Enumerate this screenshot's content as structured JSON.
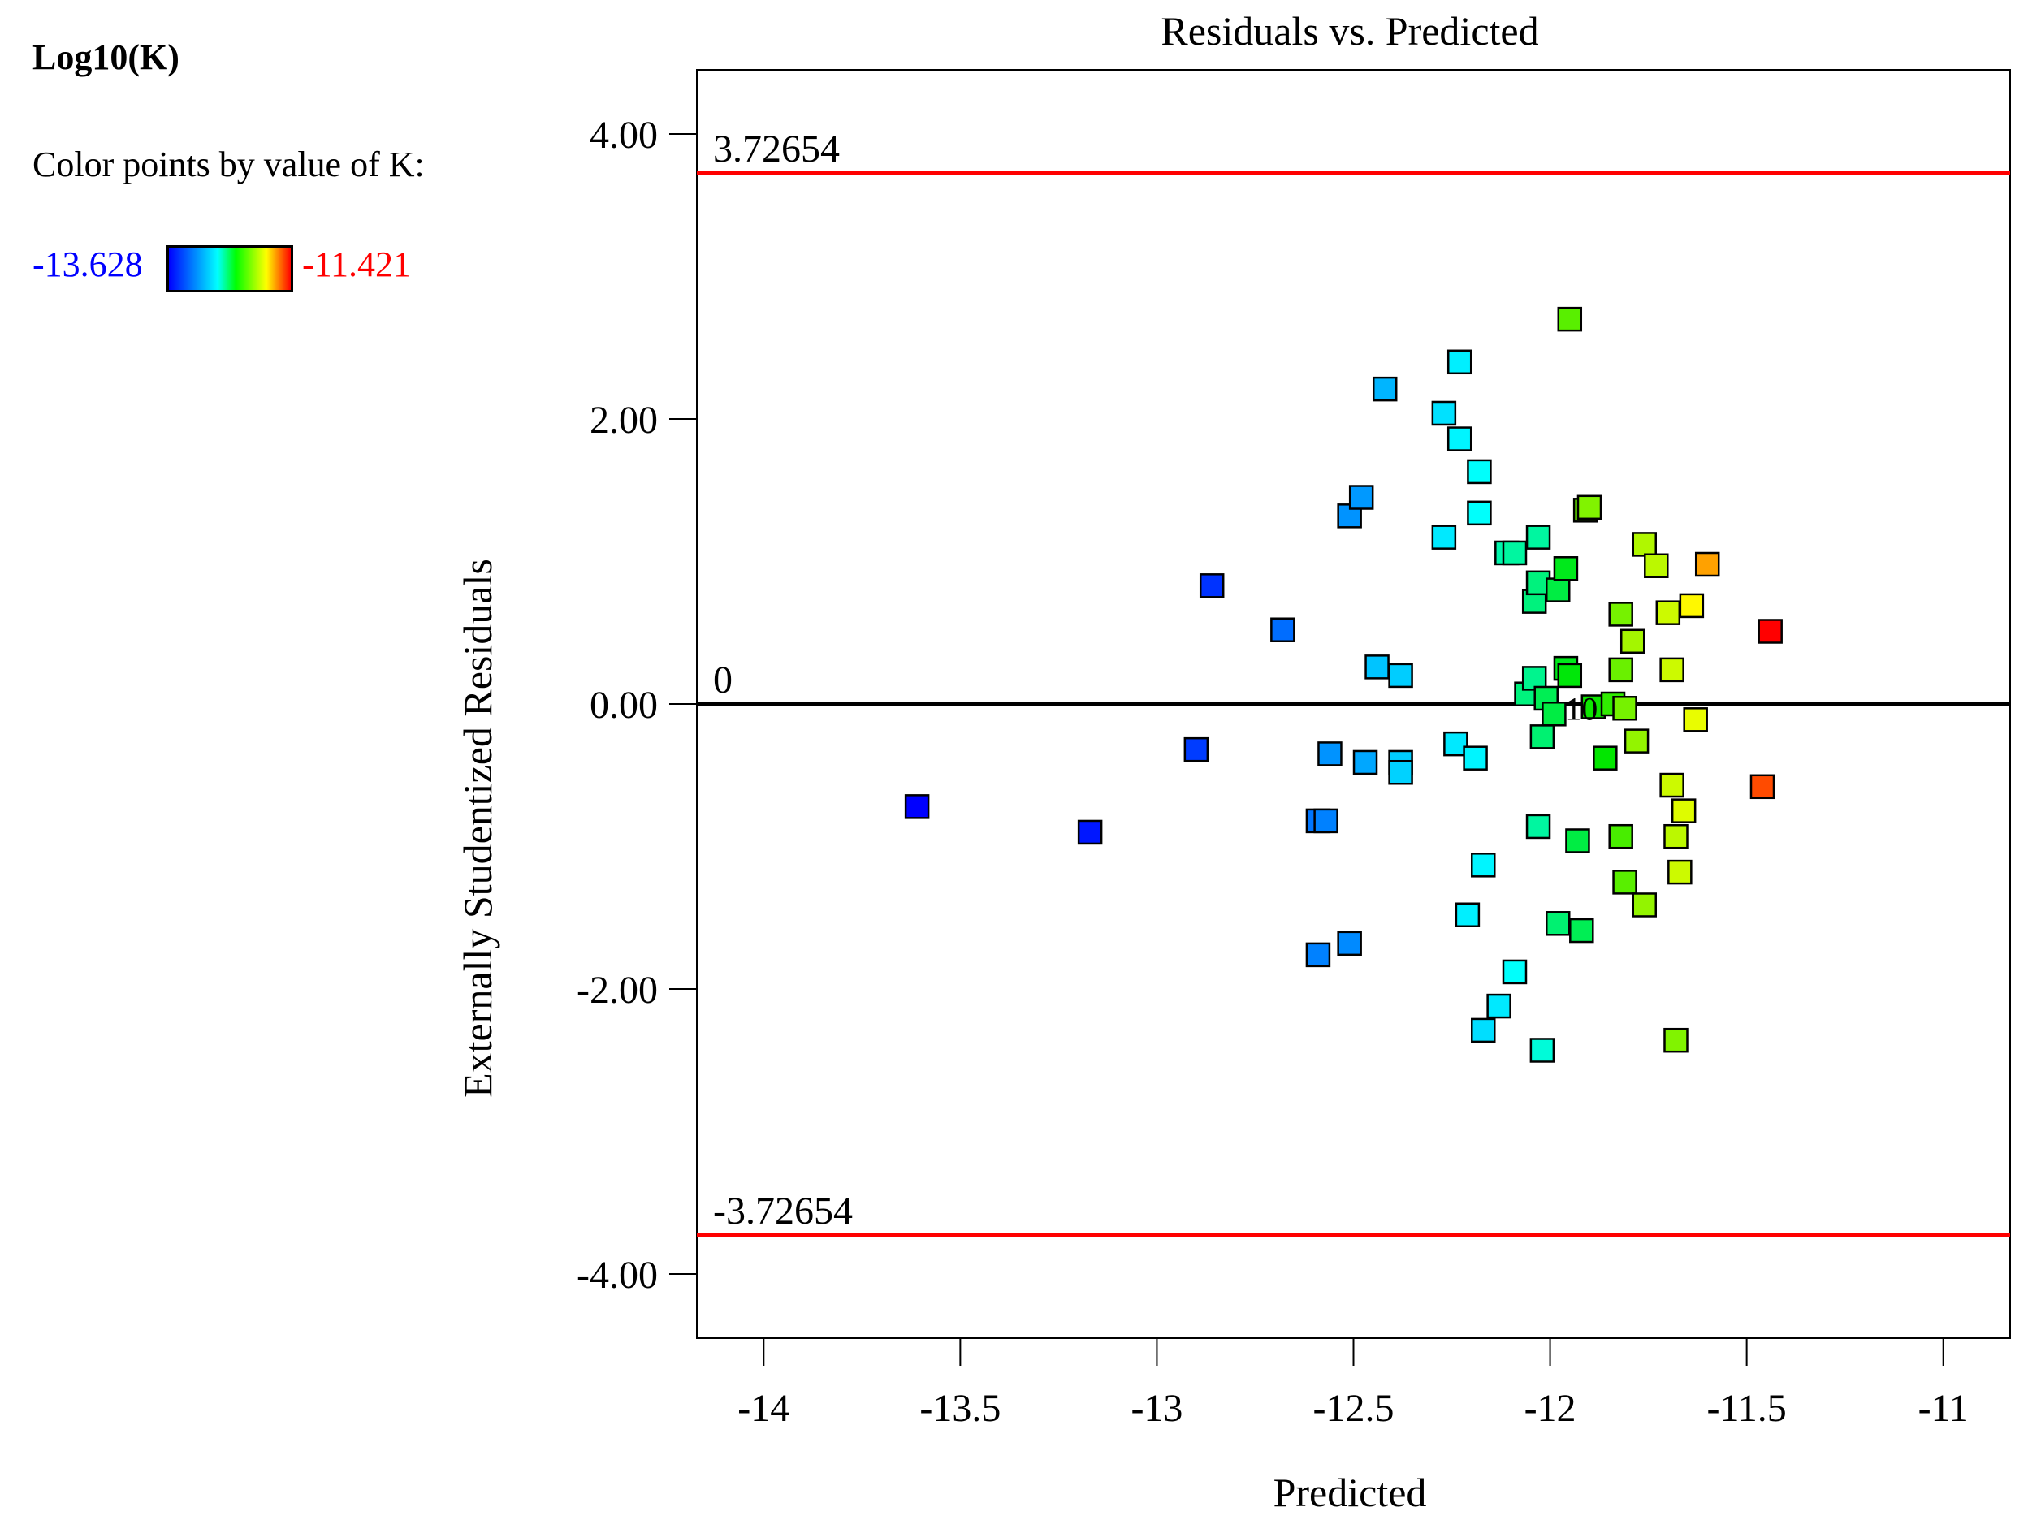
{
  "legend": {
    "title": "Log10(K)",
    "caption": "Color points by value of K:",
    "min_label": "-13.628",
    "max_label": "-11.421",
    "min_color": "#0000ff",
    "max_color": "#ff0000"
  },
  "chart_data": {
    "type": "scatter",
    "title": "Residuals vs. Predicted",
    "xlabel": "Predicted",
    "ylabel": "Externally Studentized Residuals",
    "xlim": [
      -14.17,
      -10.83
    ],
    "ylim": [
      -4.45,
      4.45
    ],
    "xticks": [
      -14,
      -13.5,
      -13,
      -12.5,
      -12,
      -11.5,
      -11
    ],
    "xtick_labels": [
      "-14",
      "-13.5",
      "-13",
      "-12.5",
      "-12",
      "-11.5",
      "-11"
    ],
    "yticks": [
      4,
      2,
      0,
      -2,
      -4
    ],
    "ytick_labels": [
      "4.00",
      "2.00",
      "0.00",
      "-2.00",
      "-4.00"
    ],
    "reference_lines": [
      {
        "y": 3.72654,
        "label": "3.72654",
        "color": "#ff0000"
      },
      {
        "y": 0,
        "label": "0",
        "color": "#000000"
      },
      {
        "y": -3.72654,
        "label": "-3.72654",
        "color": "#ff0000"
      }
    ],
    "annotations": [
      {
        "x": -11.92,
        "y": -0.02,
        "text": "10"
      }
    ],
    "color_range": [
      -13.628,
      -11.421
    ],
    "points": [
      {
        "x": -13.61,
        "y": -0.72,
        "k": -13.628
      },
      {
        "x": -13.17,
        "y": -0.9,
        "k": -13.55
      },
      {
        "x": -12.86,
        "y": 0.83,
        "k": -13.45
      },
      {
        "x": -12.9,
        "y": -0.32,
        "k": -13.42
      },
      {
        "x": -12.68,
        "y": 0.52,
        "k": -13.25
      },
      {
        "x": -12.59,
        "y": -0.82,
        "k": -13.22
      },
      {
        "x": -12.57,
        "y": -0.82,
        "k": -13.18
      },
      {
        "x": -12.59,
        "y": -1.76,
        "k": -13.18
      },
      {
        "x": -12.51,
        "y": -1.68,
        "k": -13.15
      },
      {
        "x": -12.56,
        "y": -0.35,
        "k": -13.12
      },
      {
        "x": -12.51,
        "y": 1.32,
        "k": -13.12
      },
      {
        "x": -12.48,
        "y": 1.45,
        "k": -13.1
      },
      {
        "x": -12.47,
        "y": -0.41,
        "k": -13.05
      },
      {
        "x": -12.42,
        "y": 2.21,
        "k": -13.0
      },
      {
        "x": -12.44,
        "y": 0.26,
        "k": -12.95
      },
      {
        "x": -12.38,
        "y": 0.2,
        "k": -12.92
      },
      {
        "x": -12.38,
        "y": -0.41,
        "k": -12.92
      },
      {
        "x": -12.38,
        "y": -0.48,
        "k": -12.9
      },
      {
        "x": -12.27,
        "y": 2.04,
        "k": -12.85
      },
      {
        "x": -12.27,
        "y": 1.17,
        "k": -12.82
      },
      {
        "x": -12.23,
        "y": 2.4,
        "k": -12.8
      },
      {
        "x": -12.23,
        "y": 1.86,
        "k": -12.78
      },
      {
        "x": -12.24,
        "y": -0.28,
        "k": -12.82
      },
      {
        "x": -12.18,
        "y": 1.63,
        "k": -12.74
      },
      {
        "x": -12.18,
        "y": 1.34,
        "k": -12.74
      },
      {
        "x": -12.19,
        "y": -0.38,
        "k": -12.78
      },
      {
        "x": -12.21,
        "y": -1.48,
        "k": -12.8
      },
      {
        "x": -12.17,
        "y": -1.13,
        "k": -12.78
      },
      {
        "x": -12.17,
        "y": -2.29,
        "k": -12.86
      },
      {
        "x": -12.13,
        "y": -2.12,
        "k": -12.82
      },
      {
        "x": -12.09,
        "y": -1.88,
        "k": -12.74
      },
      {
        "x": -12.11,
        "y": 1.06,
        "k": -12.6
      },
      {
        "x": -12.09,
        "y": 1.06,
        "k": -12.58
      },
      {
        "x": -12.06,
        "y": 0.07,
        "k": -12.52
      },
      {
        "x": -12.04,
        "y": 0.18,
        "k": -12.55
      },
      {
        "x": -12.04,
        "y": 0.72,
        "k": -12.52
      },
      {
        "x": -12.03,
        "y": 1.17,
        "k": -12.58
      },
      {
        "x": -12.03,
        "y": 0.85,
        "k": -12.52
      },
      {
        "x": -12.03,
        "y": -0.86,
        "k": -12.58
      },
      {
        "x": -12.02,
        "y": -0.23,
        "k": -12.5
      },
      {
        "x": -12.02,
        "y": -2.43,
        "k": -12.68
      },
      {
        "x": -12.01,
        "y": 0.04,
        "k": -12.45
      },
      {
        "x": -11.99,
        "y": -0.07,
        "k": -12.42
      },
      {
        "x": -11.98,
        "y": 0.8,
        "k": -12.42
      },
      {
        "x": -11.98,
        "y": -1.54,
        "k": -12.5
      },
      {
        "x": -11.96,
        "y": 0.95,
        "k": -12.35
      },
      {
        "x": -11.96,
        "y": 0.25,
        "k": -12.35
      },
      {
        "x": -11.95,
        "y": 0.2,
        "k": -12.32
      },
      {
        "x": -11.95,
        "y": 2.7,
        "k": -12.15
      },
      {
        "x": -11.93,
        "y": -0.96,
        "k": -12.42
      },
      {
        "x": -11.92,
        "y": -1.59,
        "k": -12.45
      },
      {
        "x": -11.91,
        "y": 1.36,
        "k": -12.12
      },
      {
        "x": -11.9,
        "y": 1.38,
        "k": -12.08
      },
      {
        "x": -11.89,
        "y": -0.02,
        "k": -12.28
      },
      {
        "x": -11.86,
        "y": -0.38,
        "k": -12.3
      },
      {
        "x": -11.84,
        "y": 0.0,
        "k": -12.22
      },
      {
        "x": -11.82,
        "y": 0.63,
        "k": -12.1
      },
      {
        "x": -11.82,
        "y": 0.24,
        "k": -12.12
      },
      {
        "x": -11.82,
        "y": -0.93,
        "k": -12.18
      },
      {
        "x": -11.81,
        "y": -1.25,
        "k": -12.15
      },
      {
        "x": -11.81,
        "y": -0.03,
        "k": -12.1
      },
      {
        "x": -11.79,
        "y": 0.44,
        "k": -12.02
      },
      {
        "x": -11.78,
        "y": -0.26,
        "k": -12.05
      },
      {
        "x": -11.76,
        "y": 1.12,
        "k": -12.0
      },
      {
        "x": -11.76,
        "y": -1.41,
        "k": -12.05
      },
      {
        "x": -11.73,
        "y": 0.97,
        "k": -11.98
      },
      {
        "x": -11.7,
        "y": 0.64,
        "k": -11.95
      },
      {
        "x": -11.69,
        "y": 0.24,
        "k": -11.95
      },
      {
        "x": -11.69,
        "y": -0.57,
        "k": -11.95
      },
      {
        "x": -11.68,
        "y": -0.93,
        "k": -11.98
      },
      {
        "x": -11.68,
        "y": -2.36,
        "k": -12.08
      },
      {
        "x": -11.67,
        "y": -1.18,
        "k": -11.95
      },
      {
        "x": -11.66,
        "y": -0.75,
        "k": -11.92
      },
      {
        "x": -11.64,
        "y": 0.69,
        "k": -11.85
      },
      {
        "x": -11.63,
        "y": -0.11,
        "k": -11.9
      },
      {
        "x": -11.6,
        "y": 0.98,
        "k": -11.7
      },
      {
        "x": -11.46,
        "y": -0.58,
        "k": -11.55
      },
      {
        "x": -11.44,
        "y": 0.51,
        "k": -11.421
      }
    ]
  }
}
